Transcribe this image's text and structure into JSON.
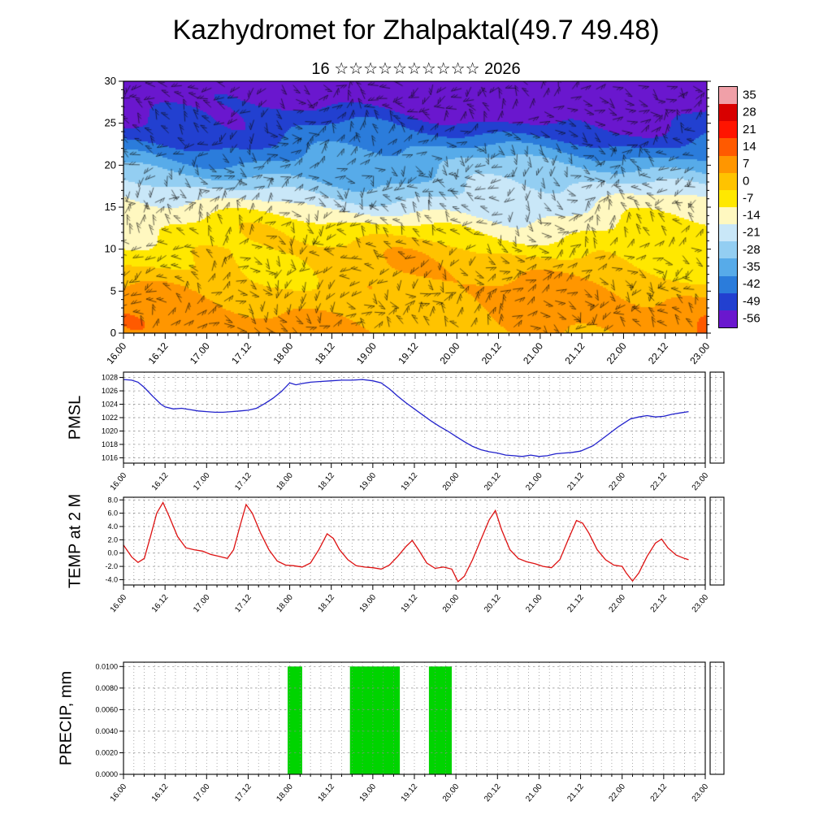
{
  "header": {
    "title": "Kazhydromet for Zhalpaktal(49.7 49.48)",
    "subtitle": "16 ☆☆☆☆☆☆☆☆☆☆ 2026"
  },
  "time_axis": {
    "tick_labels": [
      "16.00",
      "16.12",
      "17.00",
      "17.12",
      "18.00",
      "18.12",
      "19.00",
      "19.12",
      "20.00",
      "20.12",
      "21.00",
      "21.12",
      "22.00",
      "22.12",
      "23.00"
    ]
  },
  "chart_data": [
    {
      "type": "heatmap",
      "panel": "cross-section",
      "description": "Time-height cross-section: temperature shading with dense wind barbs",
      "ylim": [
        0,
        30
      ],
      "yticks": [
        0,
        5,
        10,
        15,
        20,
        25,
        30
      ],
      "x_tick_labels": [
        "16.00",
        "16.12",
        "17.00",
        "17.12",
        "18.00",
        "18.12",
        "19.00",
        "19.12",
        "20.00",
        "20.12",
        "21.00",
        "21.12",
        "22.00",
        "22.12",
        "23.00"
      ],
      "colorbar_labels": [
        "35",
        "28",
        "21",
        "14",
        "7",
        "0",
        "-7",
        "-14",
        "-21",
        "-28",
        "-35",
        "-42",
        "-49",
        "-56"
      ],
      "colorbar_colors": [
        "#F0A0A8",
        "#D80000",
        "#FF1400",
        "#FF5A00",
        "#FF9600",
        "#FFC300",
        "#FFE800",
        "#FFF8C0",
        "#C9E7F8",
        "#93CEF2",
        "#57ABE9",
        "#2B7CDB",
        "#2240D0",
        "#6A17CE"
      ],
      "temperature_profile": {
        "levels": [
          0,
          5,
          10,
          13,
          15,
          18,
          21,
          24,
          27,
          30
        ],
        "values": [
          9,
          6,
          0,
          -7,
          -14,
          -24,
          -33,
          -44,
          -52,
          -59
        ]
      },
      "wind_barbs": true
    },
    {
      "type": "line",
      "panel": "pmsl",
      "ylabel": "PMSL",
      "color": "#2222CC",
      "xlim": [
        0,
        14
      ],
      "ylim": [
        1015.2,
        1028.8
      ],
      "yticks": [
        1016,
        1018,
        1020,
        1022,
        1024,
        1026,
        1028
      ],
      "x_tick_labels": [
        "16.00",
        "16.12",
        "17.00",
        "17.12",
        "18.00",
        "18.12",
        "19.00",
        "19.12",
        "20.00",
        "20.12",
        "21.00",
        "21.12",
        "22.00",
        "22.12",
        "23.00"
      ],
      "points": [
        [
          0,
          1027.7
        ],
        [
          0.2,
          1027.6
        ],
        [
          0.35,
          1027.3
        ],
        [
          0.5,
          1026.5
        ],
        [
          0.7,
          1025.2
        ],
        [
          0.9,
          1024.0
        ],
        [
          1,
          1023.6
        ],
        [
          1.2,
          1023.3
        ],
        [
          1.4,
          1023.4
        ],
        [
          1.6,
          1023.2
        ],
        [
          1.8,
          1023.0
        ],
        [
          2,
          1022.9
        ],
        [
          2.2,
          1022.8
        ],
        [
          2.4,
          1022.8
        ],
        [
          2.6,
          1022.9
        ],
        [
          2.8,
          1023.0
        ],
        [
          3,
          1023.1
        ],
        [
          3.2,
          1023.4
        ],
        [
          3.4,
          1024.1
        ],
        [
          3.6,
          1024.9
        ],
        [
          3.8,
          1025.9
        ],
        [
          4,
          1027.2
        ],
        [
          4.15,
          1026.9
        ],
        [
          4.3,
          1027.1
        ],
        [
          4.5,
          1027.3
        ],
        [
          4.75,
          1027.4
        ],
        [
          5,
          1027.5
        ],
        [
          5.25,
          1027.6
        ],
        [
          5.5,
          1027.6
        ],
        [
          5.75,
          1027.7
        ],
        [
          6,
          1027.5
        ],
        [
          6.2,
          1027.2
        ],
        [
          6.4,
          1026.3
        ],
        [
          6.6,
          1025.2
        ],
        [
          6.8,
          1024.2
        ],
        [
          7,
          1023.3
        ],
        [
          7.2,
          1022.4
        ],
        [
          7.4,
          1021.5
        ],
        [
          7.6,
          1020.7
        ],
        [
          7.8,
          1020.0
        ],
        [
          8,
          1019.2
        ],
        [
          8.2,
          1018.4
        ],
        [
          8.4,
          1017.7
        ],
        [
          8.6,
          1017.2
        ],
        [
          8.8,
          1016.9
        ],
        [
          9,
          1016.7
        ],
        [
          9.2,
          1016.4
        ],
        [
          9.4,
          1016.3
        ],
        [
          9.6,
          1016.2
        ],
        [
          9.8,
          1016.4
        ],
        [
          10,
          1016.2
        ],
        [
          10.2,
          1016.3
        ],
        [
          10.4,
          1016.6
        ],
        [
          10.6,
          1016.7
        ],
        [
          10.8,
          1016.8
        ],
        [
          11,
          1017.0
        ],
        [
          11.3,
          1017.8
        ],
        [
          11.6,
          1019.2
        ],
        [
          11.9,
          1020.6
        ],
        [
          12,
          1021.0
        ],
        [
          12.2,
          1021.8
        ],
        [
          12.4,
          1022.1
        ],
        [
          12.6,
          1022.3
        ],
        [
          12.8,
          1022.1
        ],
        [
          13,
          1022.2
        ],
        [
          13.2,
          1022.5
        ],
        [
          13.4,
          1022.7
        ],
        [
          13.6,
          1022.9
        ]
      ]
    },
    {
      "type": "line",
      "panel": "temp2m",
      "ylabel": "TEMP at 2 M",
      "color": "#DD1111",
      "xlim": [
        0,
        14
      ],
      "ylim": [
        -4.8,
        8.4
      ],
      "yticks": [
        -4,
        -2,
        0,
        2,
        4,
        6,
        8
      ],
      "x_tick_labels": [
        "16.00",
        "16.12",
        "17.00",
        "17.12",
        "18.00",
        "18.12",
        "19.00",
        "19.12",
        "20.00",
        "20.12",
        "21.00",
        "21.12",
        "22.00",
        "22.12",
        "23.00"
      ],
      "points": [
        [
          0,
          1.2
        ],
        [
          0.2,
          -0.6
        ],
        [
          0.35,
          -1.4
        ],
        [
          0.5,
          -0.8
        ],
        [
          0.65,
          2.5
        ],
        [
          0.8,
          6.0
        ],
        [
          0.95,
          7.6
        ],
        [
          1.1,
          5.5
        ],
        [
          1.3,
          2.5
        ],
        [
          1.5,
          0.8
        ],
        [
          1.7,
          0.5
        ],
        [
          1.9,
          0.3
        ],
        [
          2.1,
          -0.2
        ],
        [
          2.3,
          -0.5
        ],
        [
          2.5,
          -0.8
        ],
        [
          2.65,
          0.5
        ],
        [
          2.8,
          4.0
        ],
        [
          2.95,
          7.3
        ],
        [
          3.1,
          6.0
        ],
        [
          3.3,
          3.0
        ],
        [
          3.5,
          0.5
        ],
        [
          3.7,
          -1.2
        ],
        [
          3.9,
          -1.8
        ],
        [
          4.1,
          -1.9
        ],
        [
          4.3,
          -2.1
        ],
        [
          4.5,
          -1.5
        ],
        [
          4.7,
          0.5
        ],
        [
          4.9,
          2.9
        ],
        [
          5.05,
          2.2
        ],
        [
          5.2,
          0.5
        ],
        [
          5.4,
          -1.0
        ],
        [
          5.6,
          -1.9
        ],
        [
          5.8,
          -2.1
        ],
        [
          6,
          -2.2
        ],
        [
          6.2,
          -2.4
        ],
        [
          6.4,
          -1.8
        ],
        [
          6.6,
          -0.5
        ],
        [
          6.8,
          1.0
        ],
        [
          6.95,
          1.9
        ],
        [
          7.1,
          0.5
        ],
        [
          7.3,
          -1.5
        ],
        [
          7.5,
          -2.3
        ],
        [
          7.7,
          -2.1
        ],
        [
          7.9,
          -2.4
        ],
        [
          8.05,
          -4.3
        ],
        [
          8.2,
          -3.5
        ],
        [
          8.4,
          -1.0
        ],
        [
          8.6,
          2.0
        ],
        [
          8.8,
          5.0
        ],
        [
          8.95,
          6.4
        ],
        [
          9.1,
          3.5
        ],
        [
          9.3,
          0.5
        ],
        [
          9.5,
          -0.8
        ],
        [
          9.7,
          -1.3
        ],
        [
          9.9,
          -1.6
        ],
        [
          10.1,
          -2.0
        ],
        [
          10.3,
          -2.2
        ],
        [
          10.5,
          -1.0
        ],
        [
          10.7,
          2.0
        ],
        [
          10.9,
          4.9
        ],
        [
          11.05,
          4.5
        ],
        [
          11.2,
          3.0
        ],
        [
          11.4,
          0.5
        ],
        [
          11.6,
          -1.0
        ],
        [
          11.8,
          -1.8
        ],
        [
          12,
          -2.0
        ],
        [
          12.1,
          -3.0
        ],
        [
          12.25,
          -4.2
        ],
        [
          12.4,
          -3.0
        ],
        [
          12.6,
          -0.5
        ],
        [
          12.8,
          1.5
        ],
        [
          12.95,
          2.1
        ],
        [
          13.1,
          0.8
        ],
        [
          13.3,
          -0.3
        ],
        [
          13.5,
          -0.8
        ],
        [
          13.6,
          -1.0
        ]
      ]
    },
    {
      "type": "bar",
      "panel": "precip",
      "ylabel": "PRECIP, mm",
      "color": "#00D400",
      "xlim": [
        0,
        14
      ],
      "ylim": [
        0,
        0.0104
      ],
      "yticks": [
        0,
        0.002,
        0.004,
        0.006,
        0.008,
        0.01
      ],
      "x_tick_labels": [
        "16.00",
        "16.12",
        "17.00",
        "17.12",
        "18.00",
        "18.12",
        "19.00",
        "19.12",
        "20.00",
        "20.12",
        "21.00",
        "21.12",
        "22.00",
        "22.12",
        "23.00"
      ],
      "bars": [
        {
          "x_start": 3.95,
          "x_end": 4.3,
          "value": 0.01
        },
        {
          "x_start": 5.45,
          "x_end": 6.65,
          "value": 0.01
        },
        {
          "x_start": 7.35,
          "x_end": 7.9,
          "value": 0.01
        }
      ]
    }
  ]
}
